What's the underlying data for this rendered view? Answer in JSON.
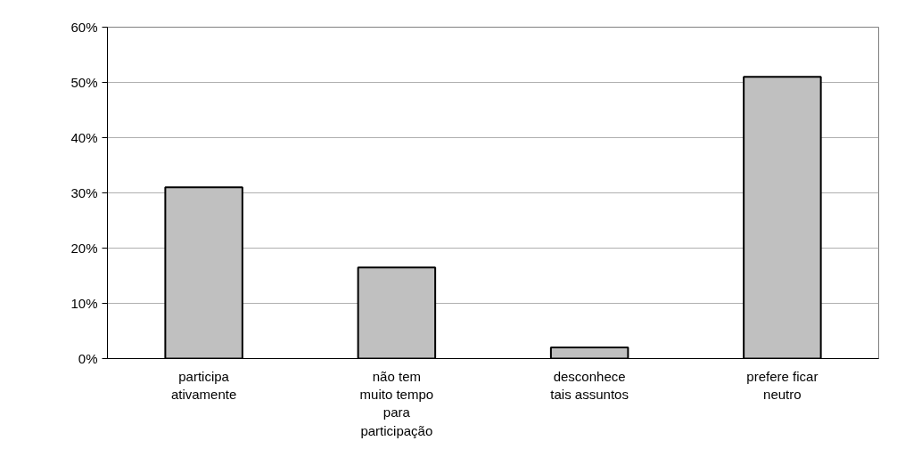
{
  "chart_data": {
    "type": "bar",
    "categories": [
      "participa\nativamente",
      "não tem\nmuito tempo\npara\nparticipação",
      "desconhece\ntais assuntos",
      "prefere ficar\nneutro"
    ],
    "values": [
      31,
      16.5,
      2,
      51
    ],
    "color": "#c0c0c0",
    "ylim": [
      0,
      60
    ],
    "yticks": [
      {
        "value": 0,
        "label": "0%"
      },
      {
        "value": 10,
        "label": "10%"
      },
      {
        "value": 20,
        "label": "20%"
      },
      {
        "value": 30,
        "label": "30%"
      },
      {
        "value": 40,
        "label": "40%"
      },
      {
        "value": 50,
        "label": "50%"
      },
      {
        "value": 60,
        "label": "60%"
      }
    ],
    "grid": "y"
  }
}
